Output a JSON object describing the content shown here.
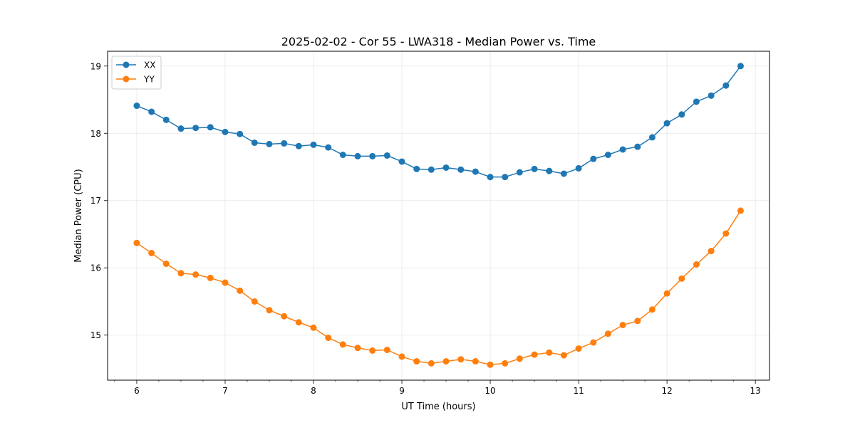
{
  "chart_data": {
    "type": "line",
    "title": "2025-02-02 - Cor 55 - LWA318 - Median Power vs. Time",
    "xlabel": "UT Time (hours)",
    "ylabel": "Median Power (CPU)",
    "xlim": [
      5.67,
      13.16
    ],
    "ylim": [
      14.33,
      19.22
    ],
    "xticks": [
      6,
      7,
      8,
      9,
      10,
      11,
      12,
      13
    ],
    "yticks": [
      15,
      16,
      17,
      18,
      19
    ],
    "grid": true,
    "legend_position": "top-left",
    "x": [
      6.0,
      6.167,
      6.333,
      6.5,
      6.667,
      6.833,
      7.0,
      7.167,
      7.333,
      7.5,
      7.667,
      7.833,
      8.0,
      8.167,
      8.333,
      8.5,
      8.667,
      8.833,
      9.0,
      9.167,
      9.333,
      9.5,
      9.667,
      9.833,
      10.0,
      10.167,
      10.333,
      10.5,
      10.667,
      10.833,
      11.0,
      11.167,
      11.333,
      11.5,
      11.667,
      11.833,
      12.0,
      12.167,
      12.333,
      12.5,
      12.667,
      12.833
    ],
    "series": [
      {
        "name": "XX",
        "color": "#1f77b4",
        "values": [
          18.41,
          18.32,
          18.2,
          18.07,
          18.08,
          18.09,
          18.02,
          17.99,
          17.86,
          17.84,
          17.85,
          17.81,
          17.83,
          17.79,
          17.68,
          17.66,
          17.66,
          17.67,
          17.58,
          17.47,
          17.46,
          17.49,
          17.46,
          17.43,
          17.35,
          17.35,
          17.42,
          17.47,
          17.44,
          17.4,
          17.48,
          17.62,
          17.68,
          17.76,
          17.8,
          17.94,
          18.15,
          18.28,
          18.47,
          18.56,
          18.71,
          19.0
        ]
      },
      {
        "name": "YY",
        "color": "#ff7f0e",
        "values": [
          16.37,
          16.22,
          16.06,
          15.92,
          15.9,
          15.85,
          15.78,
          15.66,
          15.5,
          15.37,
          15.28,
          15.19,
          15.11,
          14.96,
          14.86,
          14.81,
          14.77,
          14.78,
          14.68,
          14.61,
          14.58,
          14.61,
          14.64,
          14.61,
          14.56,
          14.58,
          14.65,
          14.71,
          14.74,
          14.7,
          14.8,
          14.89,
          15.02,
          15.15,
          15.21,
          15.38,
          15.62,
          15.84,
          16.05,
          16.25,
          16.51,
          16.85
        ]
      }
    ]
  }
}
